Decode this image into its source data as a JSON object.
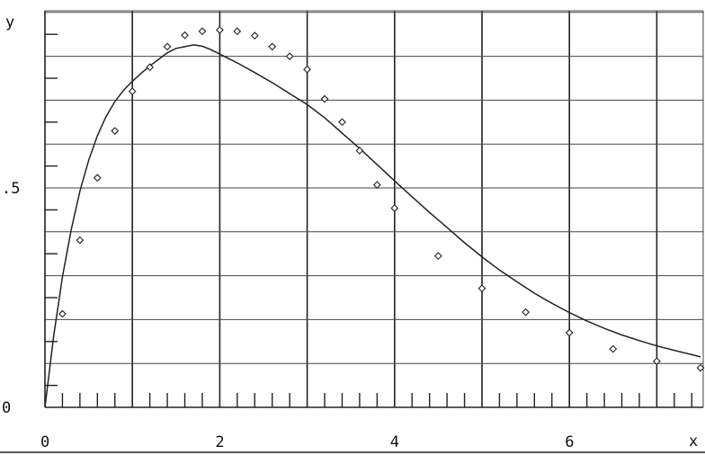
{
  "chart_data": {
    "type": "scatter",
    "xlabel": "x",
    "ylabel": "y",
    "xlim": [
      0,
      7.5
    ],
    "ylim": [
      0,
      0.9
    ],
    "x_ticks": [
      {
        "value": 0,
        "label": "0"
      },
      {
        "value": 2,
        "label": "2"
      },
      {
        "value": 4,
        "label": "4"
      },
      {
        "value": 6,
        "label": "6"
      }
    ],
    "y_ticks": [
      {
        "value": 0,
        "label": "0"
      },
      {
        "value": 0.5,
        "label": ".5"
      }
    ],
    "grid": true,
    "series": [
      {
        "kind": "points",
        "x": [
          0.2,
          0.4,
          0.6,
          0.8,
          1.0,
          1.2,
          1.4,
          1.6,
          1.8,
          2.0,
          2.2,
          2.4,
          2.6,
          2.8,
          3.0,
          3.2,
          3.4,
          3.6,
          3.8,
          4.0,
          4.5,
          5.0,
          5.5,
          6.0,
          6.5,
          7.0,
          7.5
        ],
        "y": [
          0.213,
          0.381,
          0.523,
          0.63,
          0.72,
          0.775,
          0.822,
          0.848,
          0.857,
          0.86,
          0.857,
          0.847,
          0.822,
          0.8,
          0.77,
          0.703,
          0.65,
          0.585,
          0.507,
          0.454,
          0.345,
          0.271,
          0.217,
          0.17,
          0.133,
          0.105,
          0.09
        ]
      },
      {
        "kind": "curve",
        "x": [
          0,
          0.1,
          0.2,
          0.3,
          0.4,
          0.5,
          0.6,
          0.7,
          0.8,
          0.9,
          1.0,
          1.1,
          1.2,
          1.3,
          1.4,
          1.5,
          1.6,
          1.7,
          1.8,
          1.9,
          2.0,
          2.2,
          2.4,
          2.6,
          2.8,
          3.0,
          3.2,
          3.4,
          3.6,
          3.8,
          4.0,
          4.2,
          4.4,
          4.6,
          4.8,
          5.0,
          5.2,
          5.4,
          5.6,
          5.8,
          6.0,
          6.2,
          6.4,
          6.6,
          6.8,
          7.0,
          7.2,
          7.4,
          7.5
        ],
        "y": [
          0.0,
          0.163,
          0.297,
          0.405,
          0.493,
          0.563,
          0.619,
          0.663,
          0.697,
          0.723,
          0.743,
          0.761,
          0.778,
          0.793,
          0.808,
          0.818,
          0.822,
          0.826,
          0.823,
          0.815,
          0.805,
          0.785,
          0.763,
          0.74,
          0.715,
          0.69,
          0.66,
          0.625,
          0.59,
          0.553,
          0.516,
          0.48,
          0.444,
          0.41,
          0.375,
          0.343,
          0.313,
          0.286,
          0.26,
          0.237,
          0.216,
          0.197,
          0.18,
          0.165,
          0.152,
          0.14,
          0.13,
          0.12,
          0.115
        ]
      }
    ]
  }
}
